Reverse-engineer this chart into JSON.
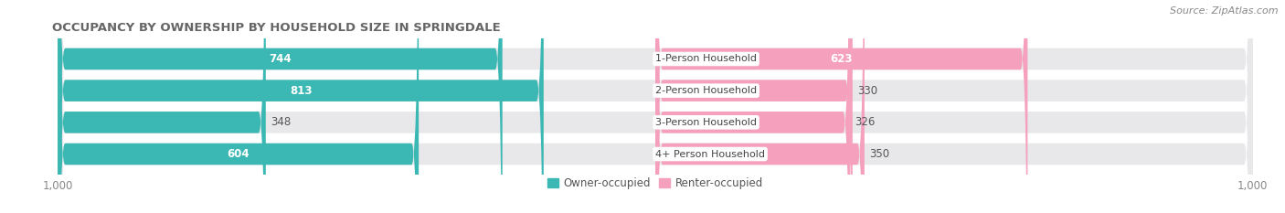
{
  "title": "OCCUPANCY BY OWNERSHIP BY HOUSEHOLD SIZE IN SPRINGDALE",
  "source": "Source: ZipAtlas.com",
  "categories": [
    "1-Person Household",
    "2-Person Household",
    "3-Person Household",
    "4+ Person Household"
  ],
  "owner_values": [
    744,
    813,
    348,
    604
  ],
  "renter_values": [
    623,
    330,
    326,
    350
  ],
  "owner_color": "#3bb8b3",
  "renter_color": "#f5a0bc",
  "bar_bg_color": "#e8e8eb",
  "axis_max": 1000,
  "title_fontsize": 9.5,
  "source_fontsize": 8,
  "tick_label_fontsize": 8.5,
  "bar_label_fontsize": 8.5,
  "category_fontsize": 8,
  "legend_fontsize": 8.5,
  "fig_bg_color": "#ffffff"
}
